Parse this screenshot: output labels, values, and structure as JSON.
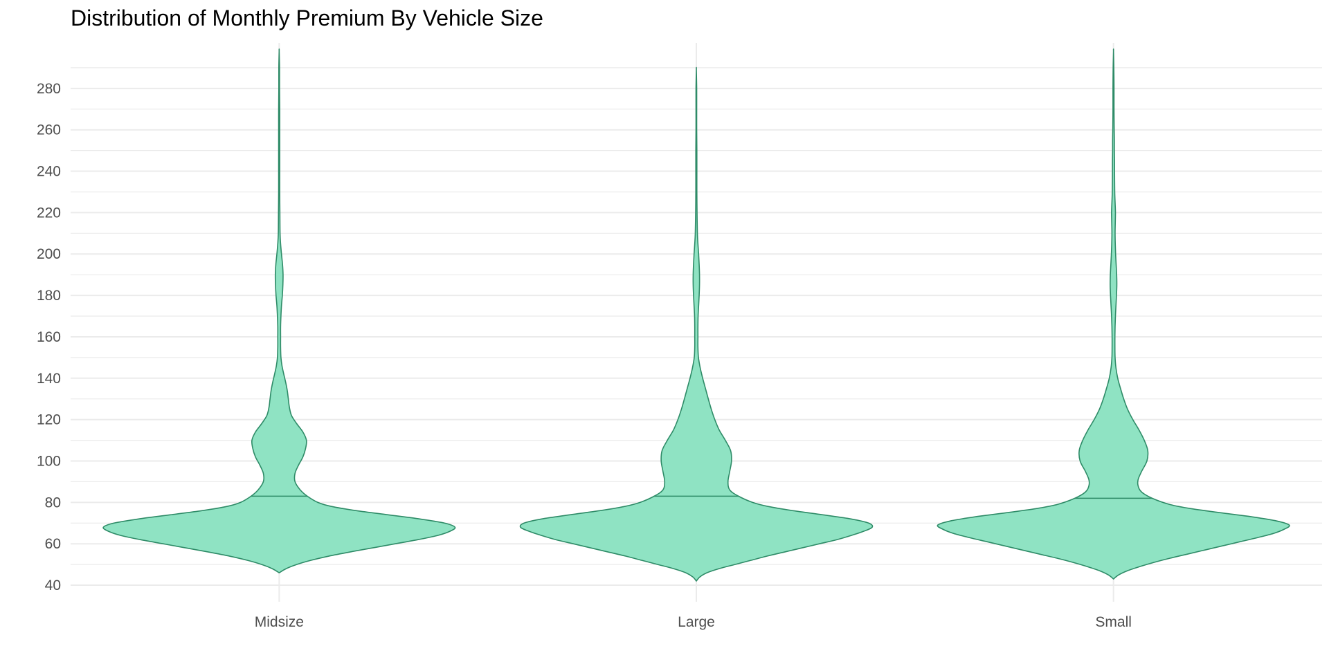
{
  "chart_data": {
    "type": "violin",
    "title": "Distribution of Monthly Premium By Vehicle Size",
    "xlabel": "",
    "ylabel": "",
    "categories": [
      "Midsize",
      "Large",
      "Small"
    ],
    "ylim": [
      32,
      302
    ],
    "yticks": [
      40,
      60,
      80,
      100,
      120,
      140,
      160,
      180,
      200,
      220,
      240,
      260,
      280
    ],
    "grid": true,
    "fill_color": "#8fe3c3",
    "line_color": "#2e8b67",
    "grid_color": "#ebebeb",
    "series": [
      {
        "category": "Midsize",
        "median": 83,
        "density": [
          [
            46,
            0.0
          ],
          [
            48,
            0.04
          ],
          [
            50,
            0.1
          ],
          [
            52,
            0.18
          ],
          [
            54,
            0.28
          ],
          [
            56,
            0.4
          ],
          [
            58,
            0.53
          ],
          [
            60,
            0.66
          ],
          [
            62,
            0.79
          ],
          [
            64,
            0.9
          ],
          [
            66,
            0.97
          ],
          [
            68,
            1.0
          ],
          [
            70,
            0.94
          ],
          [
            72,
            0.8
          ],
          [
            74,
            0.62
          ],
          [
            76,
            0.44
          ],
          [
            78,
            0.3
          ],
          [
            80,
            0.22
          ],
          [
            83,
            0.16
          ],
          [
            86,
            0.12
          ],
          [
            90,
            0.09
          ],
          [
            94,
            0.09
          ],
          [
            98,
            0.11
          ],
          [
            102,
            0.135
          ],
          [
            106,
            0.15
          ],
          [
            110,
            0.155
          ],
          [
            114,
            0.135
          ],
          [
            118,
            0.1
          ],
          [
            122,
            0.07
          ],
          [
            126,
            0.058
          ],
          [
            130,
            0.052
          ],
          [
            134,
            0.046
          ],
          [
            138,
            0.037
          ],
          [
            142,
            0.026
          ],
          [
            146,
            0.016
          ],
          [
            150,
            0.01
          ],
          [
            155,
            0.008
          ],
          [
            160,
            0.008
          ],
          [
            165,
            0.008
          ],
          [
            170,
            0.01
          ],
          [
            175,
            0.013
          ],
          [
            180,
            0.018
          ],
          [
            185,
            0.021
          ],
          [
            190,
            0.022
          ],
          [
            195,
            0.019
          ],
          [
            200,
            0.013
          ],
          [
            205,
            0.008
          ],
          [
            210,
            0.005
          ],
          [
            220,
            0.004
          ],
          [
            230,
            0.003
          ],
          [
            240,
            0.003
          ],
          [
            250,
            0.003
          ],
          [
            260,
            0.003
          ],
          [
            270,
            0.003
          ],
          [
            280,
            0.002
          ],
          [
            290,
            0.002
          ],
          [
            298,
            0.0
          ]
        ]
      },
      {
        "category": "Large",
        "median": 83,
        "density": [
          [
            42,
            0.0
          ],
          [
            44,
            0.02
          ],
          [
            46,
            0.06
          ],
          [
            48,
            0.13
          ],
          [
            50,
            0.22
          ],
          [
            52,
            0.31
          ],
          [
            54,
            0.4
          ],
          [
            56,
            0.5
          ],
          [
            58,
            0.6
          ],
          [
            60,
            0.7
          ],
          [
            62,
            0.8
          ],
          [
            64,
            0.88
          ],
          [
            66,
            0.95
          ],
          [
            68,
            1.0
          ],
          [
            70,
            0.98
          ],
          [
            72,
            0.88
          ],
          [
            74,
            0.72
          ],
          [
            76,
            0.55
          ],
          [
            78,
            0.41
          ],
          [
            80,
            0.32
          ],
          [
            83,
            0.24
          ],
          [
            86,
            0.19
          ],
          [
            90,
            0.18
          ],
          [
            95,
            0.19
          ],
          [
            100,
            0.2
          ],
          [
            105,
            0.195
          ],
          [
            110,
            0.165
          ],
          [
            115,
            0.13
          ],
          [
            120,
            0.105
          ],
          [
            125,
            0.085
          ],
          [
            130,
            0.068
          ],
          [
            135,
            0.052
          ],
          [
            140,
            0.036
          ],
          [
            145,
            0.022
          ],
          [
            150,
            0.012
          ],
          [
            155,
            0.009
          ],
          [
            160,
            0.009
          ],
          [
            165,
            0.009
          ],
          [
            170,
            0.01
          ],
          [
            175,
            0.013
          ],
          [
            180,
            0.016
          ],
          [
            185,
            0.018
          ],
          [
            190,
            0.018
          ],
          [
            195,
            0.016
          ],
          [
            200,
            0.013
          ],
          [
            205,
            0.009
          ],
          [
            210,
            0.006
          ],
          [
            220,
            0.004
          ],
          [
            230,
            0.003
          ],
          [
            240,
            0.003
          ],
          [
            250,
            0.003
          ],
          [
            260,
            0.002
          ],
          [
            270,
            0.002
          ],
          [
            280,
            0.002
          ],
          [
            289,
            0.0
          ]
        ]
      },
      {
        "category": "Small",
        "median": 82,
        "density": [
          [
            43,
            0.0
          ],
          [
            45,
            0.03
          ],
          [
            47,
            0.08
          ],
          [
            49,
            0.15
          ],
          [
            51,
            0.23
          ],
          [
            53,
            0.32
          ],
          [
            55,
            0.42
          ],
          [
            57,
            0.52
          ],
          [
            59,
            0.62
          ],
          [
            61,
            0.72
          ],
          [
            63,
            0.82
          ],
          [
            65,
            0.91
          ],
          [
            67,
            0.97
          ],
          [
            69,
            1.0
          ],
          [
            71,
            0.93
          ],
          [
            73,
            0.79
          ],
          [
            75,
            0.61
          ],
          [
            77,
            0.44
          ],
          [
            79,
            0.32
          ],
          [
            82,
            0.22
          ],
          [
            85,
            0.16
          ],
          [
            88,
            0.14
          ],
          [
            91,
            0.14
          ],
          [
            95,
            0.16
          ],
          [
            100,
            0.19
          ],
          [
            105,
            0.195
          ],
          [
            110,
            0.175
          ],
          [
            115,
            0.145
          ],
          [
            120,
            0.11
          ],
          [
            125,
            0.08
          ],
          [
            130,
            0.058
          ],
          [
            135,
            0.04
          ],
          [
            140,
            0.024
          ],
          [
            145,
            0.014
          ],
          [
            150,
            0.009
          ],
          [
            155,
            0.008
          ],
          [
            160,
            0.008
          ],
          [
            165,
            0.009
          ],
          [
            170,
            0.011
          ],
          [
            175,
            0.014
          ],
          [
            180,
            0.017
          ],
          [
            185,
            0.019
          ],
          [
            190,
            0.018
          ],
          [
            195,
            0.015
          ],
          [
            200,
            0.012
          ],
          [
            205,
            0.01
          ],
          [
            210,
            0.009
          ],
          [
            215,
            0.01
          ],
          [
            220,
            0.011
          ],
          [
            225,
            0.009
          ],
          [
            230,
            0.007
          ],
          [
            240,
            0.006
          ],
          [
            245,
            0.006
          ],
          [
            250,
            0.005
          ],
          [
            255,
            0.005
          ],
          [
            260,
            0.004
          ],
          [
            270,
            0.003
          ],
          [
            280,
            0.003
          ],
          [
            290,
            0.002
          ],
          [
            298,
            0.0
          ]
        ]
      }
    ]
  }
}
